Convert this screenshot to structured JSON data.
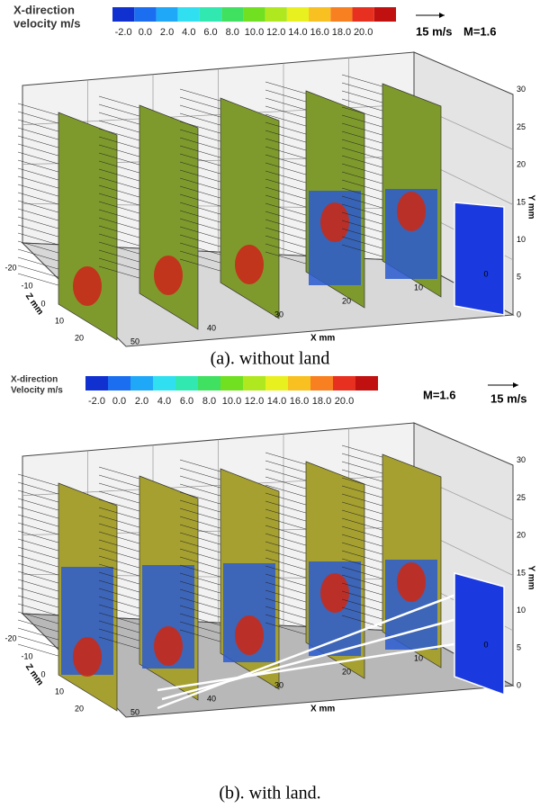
{
  "figures": [
    {
      "colorbar": {
        "title": [
          "X-direction",
          "velocity m/s"
        ],
        "ticks": [
          "-2.0",
          "0.0",
          "2.0",
          "4.0",
          "6.0",
          "8.0",
          "10.0",
          "12.0",
          "14.0",
          "16.0",
          "18.0",
          "20.0"
        ],
        "colors": [
          "#1030d0",
          "#1c6ef0",
          "#20a8f8",
          "#30e0f0",
          "#30e8b0",
          "#40e060",
          "#70e020",
          "#b0e820",
          "#e8f020",
          "#f8c020",
          "#f88020",
          "#e83020",
          "#c01010"
        ]
      },
      "scale": "15 m/s",
      "mach": "M=1.6",
      "axes": {
        "x": {
          "label": "X mm",
          "ticks": [
            "50",
            "40",
            "30",
            "20",
            "10",
            "0"
          ]
        },
        "y": {
          "label": "Y mm",
          "ticks": [
            "0",
            "5",
            "10",
            "15",
            "20",
            "25",
            "30"
          ]
        },
        "z": {
          "label": "Z mm",
          "ticks": [
            "-20",
            "-10",
            "0",
            "10",
            "20"
          ]
        }
      },
      "caption": "(a). without land"
    },
    {
      "colorbar": {
        "title": [
          "X-direction",
          "Velocity m/s"
        ],
        "ticks": [
          "-2.0",
          "0.0",
          "2.0",
          "4.0",
          "6.0",
          "8.0",
          "10.0",
          "12.0",
          "14.0",
          "16.0",
          "18.0",
          "20.0"
        ],
        "colors": [
          "#1030d0",
          "#1c6ef0",
          "#20a8f8",
          "#30e0f0",
          "#30e8b0",
          "#40e060",
          "#70e020",
          "#b0e820",
          "#e8f020",
          "#f8c020",
          "#f88020",
          "#e83020",
          "#c01010"
        ]
      },
      "scale": "15 m/s",
      "mach": "M=1.6",
      "axes": {
        "x": {
          "label": "X mm",
          "ticks": [
            "50",
            "40",
            "30",
            "20",
            "10",
            "0"
          ]
        },
        "y": {
          "label": "Y mm",
          "ticks": [
            "0",
            "5",
            "10",
            "15",
            "20",
            "25",
            "30"
          ]
        },
        "z": {
          "label": "Z mm",
          "ticks": [
            "-20",
            "-10",
            "0",
            "10",
            "20"
          ]
        }
      },
      "caption": "(b). with land."
    }
  ]
}
